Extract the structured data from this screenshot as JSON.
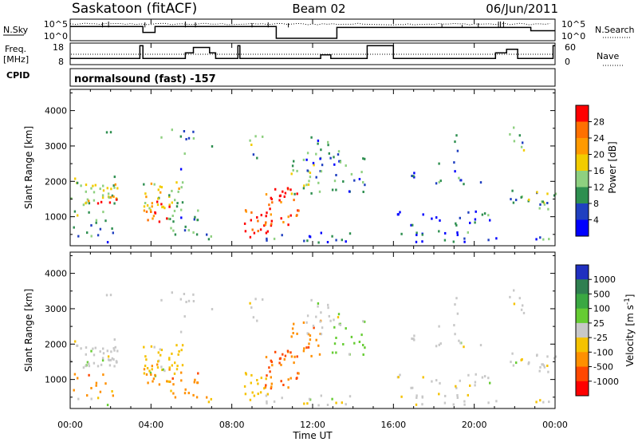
{
  "header": {
    "station": "Saskatoon (fitACF)",
    "beam": "Beam 02",
    "date": "06/Jun/2011",
    "cpid_label": "CPID",
    "cpid_text": "normalsound (fast) -157"
  },
  "chart_data": [
    {
      "type": "line",
      "name": "noise-panel",
      "left_label": "N.Sky",
      "right_label": "N.Search",
      "y_ticks_left": [
        "10^5",
        "10^0"
      ],
      "y_ticks_right": [
        "10^5",
        "10^0"
      ],
      "solid_level": [
        0.7,
        0.7,
        0.7,
        0.7,
        0.7,
        0.7,
        0.35,
        0.7,
        0.7,
        0.7,
        0.7,
        0.7,
        0.7,
        0.7,
        0.7,
        0.7,
        0.7,
        0.0,
        0.0,
        0.0,
        0.0,
        0.0,
        0.65,
        0.65,
        0.65,
        0.65,
        0.65,
        0.65,
        0.65,
        0.65,
        0.65,
        0.65,
        0.65,
        0.65,
        0.65,
        0.65,
        0.65,
        0.65,
        0.45,
        0.45
      ]
    },
    {
      "type": "line",
      "name": "frequency-panel",
      "left_label_1": "Freq.",
      "left_label_2": "[MHz]",
      "right_label": "Nave",
      "y_ticks_left": [
        "18",
        "8"
      ],
      "y_ticks_right": [
        "60",
        "0"
      ],
      "freq_steps": [
        {
          "t": 0.0,
          "mhz": 10.5
        },
        {
          "t": 3.45,
          "mhz": 17.5
        },
        {
          "t": 3.6,
          "mhz": 10.5
        },
        {
          "t": 5.7,
          "mhz": 13.5
        },
        {
          "t": 6.1,
          "mhz": 16.5
        },
        {
          "t": 6.9,
          "mhz": 13.5
        },
        {
          "t": 7.2,
          "mhz": 10.5
        },
        {
          "t": 8.3,
          "mhz": 17.5
        },
        {
          "t": 8.4,
          "mhz": 10.5
        },
        {
          "t": 11.9,
          "mhz": 10.5
        },
        {
          "t": 12.4,
          "mhz": 12.5
        },
        {
          "t": 12.9,
          "mhz": 10.5
        },
        {
          "t": 14.7,
          "mhz": 17.5
        },
        {
          "t": 16.0,
          "mhz": 10.5
        },
        {
          "t": 21.05,
          "mhz": 13.5
        },
        {
          "t": 21.6,
          "mhz": 15.5
        },
        {
          "t": 22.15,
          "mhz": 10.5
        },
        {
          "t": 23.9,
          "mhz": 17.5
        }
      ]
    },
    {
      "type": "heatmap",
      "name": "power-panel",
      "ylabel": "Slant Range [km]",
      "y_ticks": [
        1000,
        2000,
        3000,
        4000
      ],
      "ylim": [
        180,
        4600
      ],
      "colorbar_label": "Power [dB]",
      "colorbar_ticks": [
        "28",
        "24",
        "20",
        "16",
        "12",
        "8",
        "4"
      ],
      "colorbar_colors": [
        "#ff0000",
        "#ff7000",
        "#ff9a00",
        "#f2cc00",
        "#8ed080",
        "#2e8f50",
        "#2040c0",
        "#0000ff"
      ]
    },
    {
      "type": "heatmap",
      "name": "velocity-panel",
      "ylabel": "Slant Range [km]",
      "y_ticks": [
        1000,
        2000,
        3000,
        4000
      ],
      "ylim": [
        180,
        4600
      ],
      "colorbar_label": "Velocity [m s^-1]",
      "colorbar_ticks": [
        "1000",
        "500",
        "100",
        "25",
        "-25",
        "-100",
        "-500",
        "-1000"
      ],
      "colorbar_colors": [
        "#2030c0",
        "#2f7f50",
        "#3aa842",
        "#66cc33",
        "#c8c8c8",
        "#f5c200",
        "#ff9000",
        "#ff4800",
        "#ff0000"
      ]
    }
  ],
  "x_axis": {
    "xlabel": "Time UT",
    "xlim": [
      0,
      24
    ],
    "tick_labels": [
      "00:00",
      "04:00",
      "08:00",
      "12:00",
      "16:00",
      "20:00",
      "00:00"
    ]
  },
  "data_segments_ut": [
    [
      0,
      2.7
    ],
    [
      3.5,
      6.3
    ],
    [
      6.7,
      7.05
    ],
    [
      8.6,
      14.6
    ],
    [
      16.0,
      24
    ]
  ],
  "scatter_regions": [
    {
      "t0": 0.0,
      "t1": 2.3,
      "r0": 1300,
      "r1": 2150,
      "power": 14,
      "vel": 0,
      "dens": 0.95
    },
    {
      "t0": 1.2,
      "t1": 2.3,
      "r0": 1300,
      "r1": 1650,
      "power": 25,
      "vel": 0,
      "dens": 0.75
    },
    {
      "t0": 0.0,
      "t1": 1.6,
      "r0": 500,
      "r1": 1300,
      "power": 10,
      "vel": -300,
      "dens": 0.35
    },
    {
      "t0": 1.0,
      "t1": 2.5,
      "r0": 400,
      "r1": 900,
      "power": 9,
      "vel": -150,
      "dens": 0.3
    },
    {
      "t0": 1.3,
      "t1": 2.1,
      "r0": 2700,
      "r1": 3400,
      "power": 6,
      "vel": 0,
      "dens": 0.2
    },
    {
      "t0": 0.0,
      "t1": 2.7,
      "r0": 250,
      "r1": 500,
      "power": 6,
      "vel": 0,
      "dens": 0.25
    },
    {
      "t0": 3.5,
      "t1": 5.6,
      "r0": 1150,
      "r1": 2000,
      "power": 16,
      "vel": -50,
      "dens": 0.9
    },
    {
      "t0": 3.6,
      "t1": 4.9,
      "r0": 900,
      "r1": 1550,
      "power": 24,
      "vel": -150,
      "dens": 0.8
    },
    {
      "t0": 3.7,
      "t1": 4.5,
      "r0": 800,
      "r1": 1200,
      "power": 28,
      "vel": -300,
      "dens": 0.55
    },
    {
      "t0": 4.0,
      "t1": 6.4,
      "r0": 3100,
      "r1": 3500,
      "power": 10,
      "vel": 0,
      "dens": 0.45
    },
    {
      "t0": 4.6,
      "t1": 6.3,
      "r0": 400,
      "r1": 1200,
      "power": 9,
      "vel": -300,
      "dens": 0.6
    },
    {
      "t0": 5.5,
      "t1": 7.05,
      "r0": 300,
      "r1": 900,
      "power": 8,
      "vel": -100,
      "dens": 0.55
    },
    {
      "t0": 5.3,
      "t1": 5.9,
      "r0": 2300,
      "r1": 2800,
      "power": 8,
      "vel": 0,
      "dens": 0.3
    },
    {
      "t0": 6.7,
      "t1": 7.05,
      "r0": 2900,
      "r1": 3200,
      "power": 8,
      "vel": 0,
      "dens": 0.6
    },
    {
      "t0": 8.6,
      "t1": 9.8,
      "r0": 400,
      "r1": 1250,
      "power": 28,
      "vel": -50,
      "dens": 0.9
    },
    {
      "t0": 9.6,
      "t1": 11.3,
      "r0": 700,
      "r1": 1900,
      "power": 27,
      "vel": -500,
      "dens": 0.85
    },
    {
      "t0": 10.9,
      "t1": 12.4,
      "r0": 1600,
      "r1": 2700,
      "power": 12,
      "vel": -400,
      "dens": 0.7
    },
    {
      "t0": 11.5,
      "t1": 13.4,
      "r0": 2200,
      "r1": 3300,
      "power": 8,
      "vel": 0,
      "dens": 0.45
    },
    {
      "t0": 8.6,
      "t1": 9.5,
      "r0": 2600,
      "r1": 3300,
      "power": 10,
      "vel": 0,
      "dens": 0.5
    },
    {
      "t0": 12.8,
      "t1": 14.6,
      "r0": 1600,
      "r1": 2900,
      "power": 9,
      "vel": 50,
      "dens": 0.45
    },
    {
      "t0": 8.6,
      "t1": 14.6,
      "r0": 250,
      "r1": 550,
      "power": 6,
      "vel": 0,
      "dens": 0.45
    },
    {
      "t0": 16.0,
      "t1": 20.8,
      "r0": 750,
      "r1": 1150,
      "power": 6,
      "vel": 0,
      "dens": 0.55
    },
    {
      "t0": 16.5,
      "t1": 20.5,
      "r0": 1900,
      "r1": 2300,
      "power": 6,
      "vel": 0,
      "dens": 0.4
    },
    {
      "t0": 17.0,
      "t1": 19.5,
      "r0": 2500,
      "r1": 3400,
      "power": 5,
      "vel": 0,
      "dens": 0.12
    },
    {
      "t0": 21.6,
      "t1": 22.5,
      "r0": 2700,
      "r1": 3600,
      "power": 10,
      "vel": 0,
      "dens": 0.45
    },
    {
      "t0": 22.5,
      "t1": 24.0,
      "r0": 1200,
      "r1": 1750,
      "power": 12,
      "vel": 0,
      "dens": 0.9
    },
    {
      "t0": 21.6,
      "t1": 22.5,
      "r0": 1300,
      "r1": 2000,
      "power": 8,
      "vel": 0,
      "dens": 0.45
    },
    {
      "t0": 16.0,
      "t1": 24.0,
      "r0": 250,
      "r1": 600,
      "power": 6,
      "vel": 0,
      "dens": 0.4
    }
  ]
}
